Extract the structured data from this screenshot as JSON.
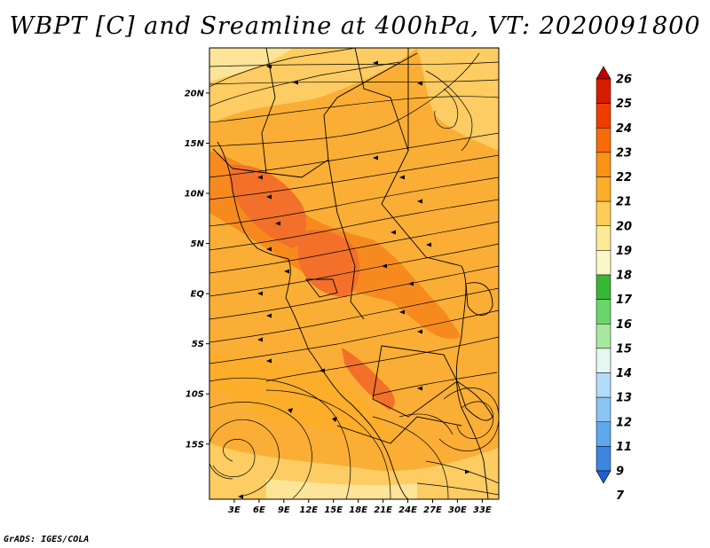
{
  "title": "WBPT [C] and Sreamline at 400hPa, VT: 2020091800",
  "footer": "GrADS: IGES/COLA",
  "map": {
    "lat_labels": [
      {
        "text": "20N",
        "lat": 20
      },
      {
        "text": "15N",
        "lat": 15
      },
      {
        "text": "10N",
        "lat": 10
      },
      {
        "text": "5N",
        "lat": 5
      },
      {
        "text": "EQ",
        "lat": 0
      },
      {
        "text": "5S",
        "lat": -5
      },
      {
        "text": "10S",
        "lat": -10
      },
      {
        "text": "15S",
        "lat": -15
      }
    ],
    "lon_labels": [
      {
        "text": "3E",
        "lon": 3
      },
      {
        "text": "6E",
        "lon": 6
      },
      {
        "text": "9E",
        "lon": 9
      },
      {
        "text": "12E",
        "lon": 12
      },
      {
        "text": "15E",
        "lon": 15
      },
      {
        "text": "18E",
        "lon": 18
      },
      {
        "text": "21E",
        "lon": 21
      },
      {
        "text": "24E",
        "lon": 24
      },
      {
        "text": "27E",
        "lon": 27
      },
      {
        "text": "30E",
        "lon": 30
      },
      {
        "text": "33E",
        "lon": 33
      }
    ],
    "lon_range": [
      0,
      35
    ],
    "lat_range": [
      -20.5,
      24.5
    ]
  },
  "colorbar": {
    "labels": [
      "26",
      "25",
      "24",
      "23",
      "22",
      "21",
      "20",
      "19",
      "18",
      "17",
      "16",
      "15",
      "14",
      "13",
      "12",
      "11",
      "9",
      "7"
    ],
    "colors": [
      "#c00000",
      "#d81c00",
      "#ef3d00",
      "#f86a0a",
      "#fa9215",
      "#fcad2a",
      "#fdcd55",
      "#fdea97",
      "#fdf8c8",
      "#38b636",
      "#6ad56a",
      "#a8e8a0",
      "#e4f7f2",
      "#b2dcf8",
      "#8cc4f3",
      "#5ea8ec",
      "#3c86e0",
      "#1f5fd0"
    ]
  },
  "fill_colors": {
    "base": "#fbae35",
    "warm": "#f78a1f",
    "hot": "#f2702a",
    "cool": "#fdcc62",
    "light": "#fde498"
  }
}
